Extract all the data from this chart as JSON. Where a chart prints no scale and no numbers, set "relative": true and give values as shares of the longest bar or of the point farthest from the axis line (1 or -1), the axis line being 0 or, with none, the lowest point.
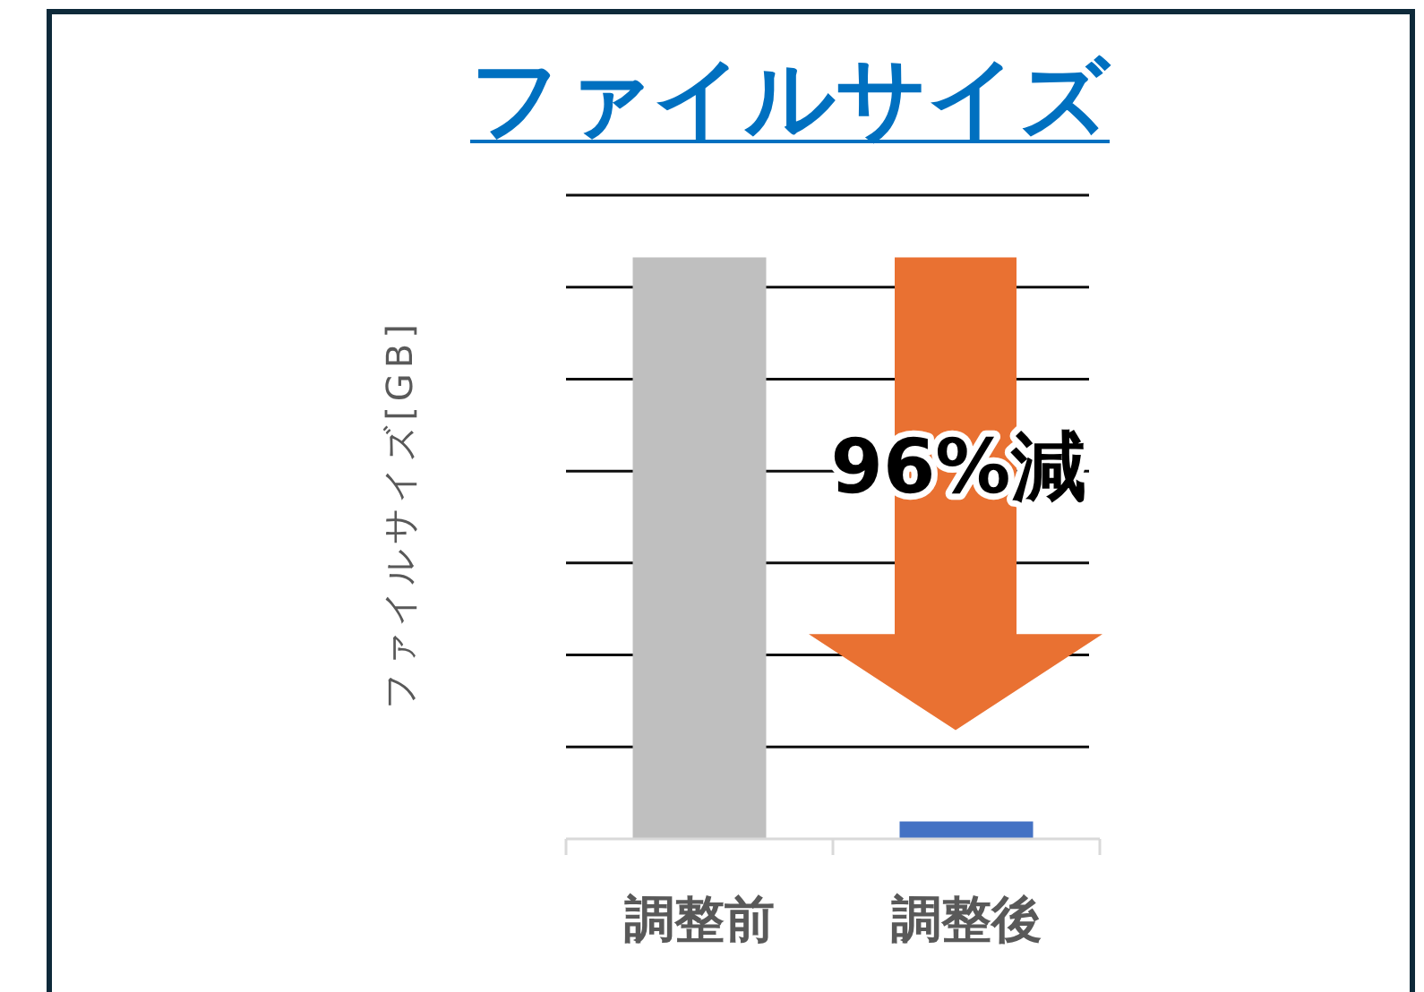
{
  "chart_data": {
    "type": "bar",
    "title": "ファイルサイズ",
    "ylabel": "ファイルサイズ[GB]",
    "categories": [
      "調整前",
      "調整後"
    ],
    "values": [
      1,
      0.03
    ],
    "colors": [
      "#bfbfbf",
      "#4472c4"
    ],
    "relative": true,
    "grid": "y",
    "annotations": [
      "96%減"
    ]
  }
}
